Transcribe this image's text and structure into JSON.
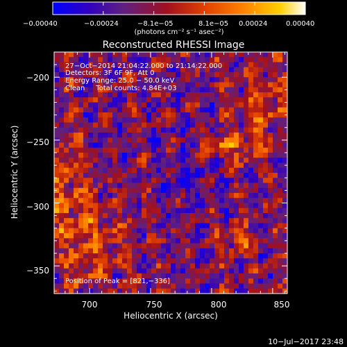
{
  "chart_data": {
    "type": "heatmap",
    "title": "Reconstructed RHESSI Image",
    "xlabel": "Heliocentric X (arcsec)",
    "ylabel": "Heliocentric Y (arcsec)",
    "xlim": [
      671,
      862
    ],
    "ylim": [
      -372,
      -180
    ],
    "xticks": [
      700,
      750,
      800,
      850
    ],
    "yticks": [
      -200,
      -250,
      -300,
      -350
    ],
    "xticklabels": [
      "700",
      "750",
      "800",
      "850"
    ],
    "yticklabels": [
      "−200",
      "−250",
      "−300",
      "−350"
    ],
    "grid": false,
    "colorbar": {
      "position": "top",
      "range": [
        -0.0004,
        0.0004
      ],
      "ticklabels": [
        "−0.00040",
        "−0.00024",
        "−8.1e−05",
        "8.1e−05",
        "0.00024",
        "0.00040"
      ],
      "unit": "(photons cm⁻² s⁻¹ asec⁻²)",
      "colors": [
        "#0000ff",
        "#3000c0",
        "#602080",
        "#a01020",
        "#e04000",
        "#ff8000",
        "#ffd000",
        "#ffffff"
      ]
    },
    "annotations": [
      "27−Oct−2014 21:04:22.000 to 21:14:22.000",
      "Detectors: 3F 6F 9F, Att 0",
      "Energy Range: 25.0 − 50.0 keV",
      "Clean     Total counts: 4.84E+03",
      "Position of Peak = [821,−336]"
    ],
    "peak": {
      "x": 821,
      "y": -336
    }
  },
  "footer": {
    "timestamp": "10−Jul−2017 23:48"
  }
}
